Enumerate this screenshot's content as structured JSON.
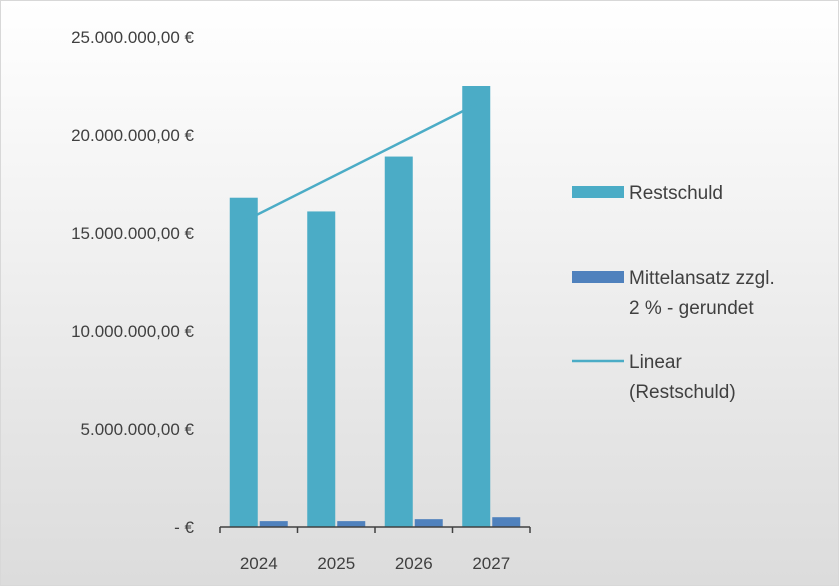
{
  "chart_data": {
    "type": "bar",
    "categories": [
      "2024",
      "2025",
      "2026",
      "2027"
    ],
    "series": [
      {
        "name": "Restschuld",
        "color": "#4bacc6",
        "values": [
          16800000,
          16100000,
          18900000,
          22500000
        ]
      },
      {
        "name": "Mittelansatz zzgl. 2 % - gerundet",
        "color": "#4f81bd",
        "values": [
          300000,
          300000,
          400000,
          500000
        ]
      }
    ],
    "trendline": {
      "name": "Linear (Restschuld)",
      "type": "linear",
      "series": "Restschuld",
      "color": "#4bacc6"
    },
    "ylim": [
      0,
      25000000
    ],
    "y_ticks": [
      {
        "value": 0,
        "label": "-   €"
      },
      {
        "value": 5000000,
        "label": "5.000.000,00 €"
      },
      {
        "value": 10000000,
        "label": "10.000.000,00 €"
      },
      {
        "value": 15000000,
        "label": "15.000.000,00 €"
      },
      {
        "value": 20000000,
        "label": "20.000.000,00 €"
      },
      {
        "value": 25000000,
        "label": "25.000.000,00 €"
      }
    ],
    "legend": {
      "position": "right",
      "entries": [
        {
          "lines": [
            "Restschuld"
          ],
          "symbol": "box",
          "color": "#4bacc6"
        },
        {
          "lines": [
            "Mittelansatz zzgl.",
            "2 % - gerundet"
          ],
          "symbol": "box",
          "color": "#4f81bd"
        },
        {
          "lines": [
            "Linear",
            "(Restschuld)"
          ],
          "symbol": "line",
          "color": "#4bacc6"
        }
      ]
    },
    "grid": false,
    "title": "",
    "xlabel": "",
    "ylabel": ""
  }
}
